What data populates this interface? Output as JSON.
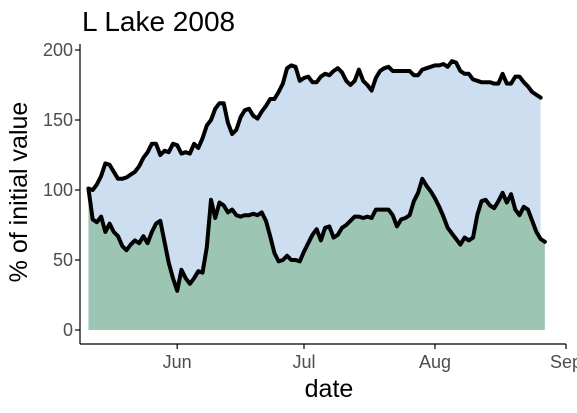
{
  "chart_data": {
    "type": "area",
    "title": "L Lake 2008",
    "xlabel": "date",
    "ylabel": "% of initial value",
    "ylim": [
      0,
      200
    ],
    "yticks": [
      0,
      50,
      100,
      150,
      200
    ],
    "xlim": [
      "2008-05-09",
      "2008-09-01"
    ],
    "xticks": [
      {
        "date": "2008-06-01",
        "label": "Jun"
      },
      {
        "date": "2008-07-01",
        "label": "Jul"
      },
      {
        "date": "2008-08-01",
        "label": "Aug"
      },
      {
        "date": "2008-09-01",
        "label": "Sep"
      }
    ],
    "grid": false,
    "legend": "none",
    "colors": {
      "upper_fill": "#cddef0",
      "lower_fill": "#9cc6b3",
      "line": "#000000",
      "axis": "#000000",
      "tick_label": "#4d4d4d",
      "text": "#000000"
    },
    "series": [
      {
        "fill": "upper_fill",
        "points": [
          [
            "2008-05-11",
            101
          ],
          [
            "2008-05-12",
            100
          ],
          [
            "2008-05-13",
            104
          ],
          [
            "2008-05-14",
            110
          ],
          [
            "2008-05-15",
            119
          ],
          [
            "2008-05-16",
            118
          ],
          [
            "2008-05-17",
            113
          ],
          [
            "2008-05-18",
            108
          ],
          [
            "2008-05-19",
            108
          ],
          [
            "2008-05-20",
            109
          ],
          [
            "2008-05-21",
            111
          ],
          [
            "2008-05-22",
            113
          ],
          [
            "2008-05-23",
            117
          ],
          [
            "2008-05-24",
            123
          ],
          [
            "2008-05-25",
            127
          ],
          [
            "2008-05-26",
            133
          ],
          [
            "2008-05-27",
            133
          ],
          [
            "2008-05-28",
            125
          ],
          [
            "2008-05-29",
            128
          ],
          [
            "2008-05-30",
            127
          ],
          [
            "2008-05-31",
            133
          ],
          [
            "2008-06-01",
            132
          ],
          [
            "2008-06-02",
            126
          ],
          [
            "2008-06-03",
            127
          ],
          [
            "2008-06-04",
            126
          ],
          [
            "2008-06-05",
            133
          ],
          [
            "2008-06-06",
            130
          ],
          [
            "2008-06-07",
            137
          ],
          [
            "2008-06-08",
            146
          ],
          [
            "2008-06-09",
            150
          ],
          [
            "2008-06-10",
            158
          ],
          [
            "2008-06-11",
            162
          ],
          [
            "2008-06-12",
            162
          ],
          [
            "2008-06-13",
            148
          ],
          [
            "2008-06-14",
            140
          ],
          [
            "2008-06-15",
            143
          ],
          [
            "2008-06-16",
            152
          ],
          [
            "2008-06-17",
            157
          ],
          [
            "2008-06-18",
            158
          ],
          [
            "2008-06-19",
            153
          ],
          [
            "2008-06-20",
            151
          ],
          [
            "2008-06-21",
            156
          ],
          [
            "2008-06-22",
            160
          ],
          [
            "2008-06-23",
            165
          ],
          [
            "2008-06-24",
            165
          ],
          [
            "2008-06-25",
            170
          ],
          [
            "2008-06-26",
            176
          ],
          [
            "2008-06-27",
            187
          ],
          [
            "2008-06-28",
            189
          ],
          [
            "2008-06-29",
            188
          ],
          [
            "2008-06-30",
            178
          ],
          [
            "2008-07-01",
            180
          ],
          [
            "2008-07-02",
            181
          ],
          [
            "2008-07-03",
            177
          ],
          [
            "2008-07-04",
            177
          ],
          [
            "2008-07-05",
            181
          ],
          [
            "2008-07-06",
            183
          ],
          [
            "2008-07-07",
            182
          ],
          [
            "2008-07-08",
            185
          ],
          [
            "2008-07-09",
            187
          ],
          [
            "2008-07-10",
            184
          ],
          [
            "2008-07-11",
            178
          ],
          [
            "2008-07-12",
            175
          ],
          [
            "2008-07-13",
            178
          ],
          [
            "2008-07-14",
            186
          ],
          [
            "2008-07-15",
            178
          ],
          [
            "2008-07-16",
            175
          ],
          [
            "2008-07-17",
            171
          ],
          [
            "2008-07-18",
            180
          ],
          [
            "2008-07-19",
            185
          ],
          [
            "2008-07-20",
            187
          ],
          [
            "2008-07-21",
            188
          ],
          [
            "2008-07-22",
            185
          ],
          [
            "2008-07-23",
            185
          ],
          [
            "2008-07-24",
            185
          ],
          [
            "2008-07-25",
            185
          ],
          [
            "2008-07-26",
            185
          ],
          [
            "2008-07-27",
            182
          ],
          [
            "2008-07-28",
            182
          ],
          [
            "2008-07-29",
            186
          ],
          [
            "2008-07-30",
            187
          ],
          [
            "2008-07-31",
            188
          ],
          [
            "2008-08-01",
            189
          ],
          [
            "2008-08-02",
            189
          ],
          [
            "2008-08-03",
            190
          ],
          [
            "2008-08-04",
            188
          ],
          [
            "2008-08-05",
            192
          ],
          [
            "2008-08-06",
            191
          ],
          [
            "2008-08-07",
            185
          ],
          [
            "2008-08-08",
            183
          ],
          [
            "2008-08-09",
            183
          ],
          [
            "2008-08-10",
            179
          ],
          [
            "2008-08-11",
            178
          ],
          [
            "2008-08-12",
            177
          ],
          [
            "2008-08-13",
            177
          ],
          [
            "2008-08-14",
            177
          ],
          [
            "2008-08-15",
            176
          ],
          [
            "2008-08-16",
            176
          ],
          [
            "2008-08-17",
            183
          ],
          [
            "2008-08-18",
            176
          ],
          [
            "2008-08-19",
            176
          ],
          [
            "2008-08-20",
            181
          ],
          [
            "2008-08-21",
            181
          ],
          [
            "2008-08-22",
            177
          ],
          [
            "2008-08-23",
            174
          ],
          [
            "2008-08-24",
            170
          ],
          [
            "2008-08-25",
            168
          ],
          [
            "2008-08-26",
            166
          ]
        ]
      },
      {
        "fill": "lower_fill",
        "points": [
          [
            "2008-05-11",
            101
          ],
          [
            "2008-05-12",
            79
          ],
          [
            "2008-05-13",
            77
          ],
          [
            "2008-05-14",
            81
          ],
          [
            "2008-05-15",
            70
          ],
          [
            "2008-05-16",
            76
          ],
          [
            "2008-05-17",
            70
          ],
          [
            "2008-05-18",
            67
          ],
          [
            "2008-05-19",
            60
          ],
          [
            "2008-05-20",
            57
          ],
          [
            "2008-05-21",
            61
          ],
          [
            "2008-05-22",
            64
          ],
          [
            "2008-05-23",
            62
          ],
          [
            "2008-05-24",
            67
          ],
          [
            "2008-05-25",
            62
          ],
          [
            "2008-05-26",
            70
          ],
          [
            "2008-05-27",
            76
          ],
          [
            "2008-05-28",
            78
          ],
          [
            "2008-05-29",
            63
          ],
          [
            "2008-05-30",
            48
          ],
          [
            "2008-05-31",
            37
          ],
          [
            "2008-06-01",
            28
          ],
          [
            "2008-06-02",
            43
          ],
          [
            "2008-06-03",
            37
          ],
          [
            "2008-06-04",
            33
          ],
          [
            "2008-06-05",
            37
          ],
          [
            "2008-06-06",
            42
          ],
          [
            "2008-06-07",
            41
          ],
          [
            "2008-06-08",
            59
          ],
          [
            "2008-06-09",
            93
          ],
          [
            "2008-06-10",
            80
          ],
          [
            "2008-06-11",
            91
          ],
          [
            "2008-06-12",
            89
          ],
          [
            "2008-06-13",
            84
          ],
          [
            "2008-06-14",
            86
          ],
          [
            "2008-06-15",
            82
          ],
          [
            "2008-06-16",
            81
          ],
          [
            "2008-06-17",
            82
          ],
          [
            "2008-06-18",
            82
          ],
          [
            "2008-06-19",
            83
          ],
          [
            "2008-06-20",
            82
          ],
          [
            "2008-06-21",
            84
          ],
          [
            "2008-06-22",
            78
          ],
          [
            "2008-06-23",
            67
          ],
          [
            "2008-06-24",
            55
          ],
          [
            "2008-06-25",
            49
          ],
          [
            "2008-06-26",
            50
          ],
          [
            "2008-06-27",
            53
          ],
          [
            "2008-06-28",
            50
          ],
          [
            "2008-06-29",
            50
          ],
          [
            "2008-06-30",
            49
          ],
          [
            "2008-07-01",
            56
          ],
          [
            "2008-07-02",
            62
          ],
          [
            "2008-07-03",
            68
          ],
          [
            "2008-07-04",
            72
          ],
          [
            "2008-07-05",
            64
          ],
          [
            "2008-07-06",
            73
          ],
          [
            "2008-07-07",
            74
          ],
          [
            "2008-07-08",
            66
          ],
          [
            "2008-07-09",
            68
          ],
          [
            "2008-07-10",
            73
          ],
          [
            "2008-07-11",
            75
          ],
          [
            "2008-07-12",
            78
          ],
          [
            "2008-07-13",
            81
          ],
          [
            "2008-07-14",
            81
          ],
          [
            "2008-07-15",
            80
          ],
          [
            "2008-07-16",
            81
          ],
          [
            "2008-07-17",
            80
          ],
          [
            "2008-07-18",
            86
          ],
          [
            "2008-07-19",
            86
          ],
          [
            "2008-07-20",
            86
          ],
          [
            "2008-07-21",
            86
          ],
          [
            "2008-07-22",
            82
          ],
          [
            "2008-07-23",
            74
          ],
          [
            "2008-07-24",
            79
          ],
          [
            "2008-07-25",
            80
          ],
          [
            "2008-07-26",
            82
          ],
          [
            "2008-07-27",
            92
          ],
          [
            "2008-07-28",
            98
          ],
          [
            "2008-07-29",
            108
          ],
          [
            "2008-07-30",
            103
          ],
          [
            "2008-07-31",
            99
          ],
          [
            "2008-08-01",
            94
          ],
          [
            "2008-08-02",
            88
          ],
          [
            "2008-08-03",
            81
          ],
          [
            "2008-08-04",
            73
          ],
          [
            "2008-08-05",
            69
          ],
          [
            "2008-08-06",
            65
          ],
          [
            "2008-08-07",
            61
          ],
          [
            "2008-08-08",
            66
          ],
          [
            "2008-08-09",
            64
          ],
          [
            "2008-08-10",
            66
          ],
          [
            "2008-08-11",
            82
          ],
          [
            "2008-08-12",
            92
          ],
          [
            "2008-08-13",
            93
          ],
          [
            "2008-08-14",
            89
          ],
          [
            "2008-08-15",
            87
          ],
          [
            "2008-08-16",
            92
          ],
          [
            "2008-08-17",
            98
          ],
          [
            "2008-08-18",
            91
          ],
          [
            "2008-08-19",
            97
          ],
          [
            "2008-08-20",
            86
          ],
          [
            "2008-08-21",
            82
          ],
          [
            "2008-08-22",
            88
          ],
          [
            "2008-08-23",
            86
          ],
          [
            "2008-08-24",
            78
          ],
          [
            "2008-08-25",
            70
          ],
          [
            "2008-08-26",
            65
          ],
          [
            "2008-08-27",
            63
          ]
        ]
      }
    ]
  }
}
